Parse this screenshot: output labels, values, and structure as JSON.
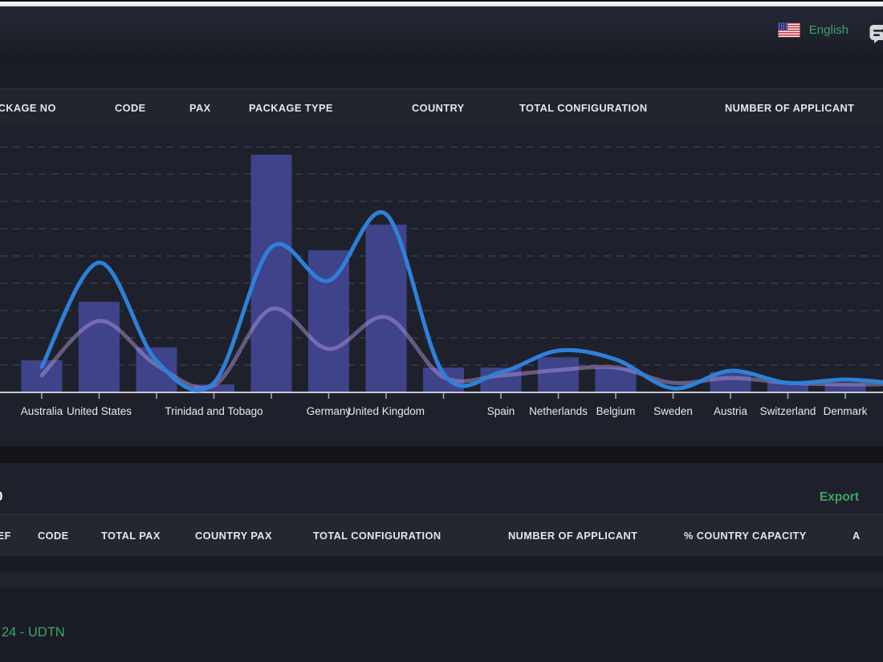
{
  "top_bar": {
    "language_label": "English",
    "flag_icon": "us-flag",
    "panel_icon": "chat-panel"
  },
  "package_table": {
    "columns": [
      "PACKAGE NO",
      "CODE",
      "PAX",
      "PACKAGE TYPE",
      "COUNTRY",
      "TOTAL CONFIGURATION",
      "NUMBER OF APPLICANT"
    ]
  },
  "chart_data": {
    "type": "bar",
    "title": "",
    "xlabel": "",
    "ylabel": "",
    "ylim": [
      0,
      95
    ],
    "grid": "horizontal-dashed",
    "legend": "none",
    "categories": [
      "Australia",
      "United States",
      "",
      "Trinidad and Tobago",
      "",
      "Germany",
      "United Kingdom",
      "",
      "Spain",
      "Netherlands",
      "Belgium",
      "Sweden",
      "Austria",
      "Switzerland",
      "Denmark"
    ],
    "series": [
      {
        "name": "country-bars",
        "type": "bar",
        "color": "#3f4389",
        "values": [
          11.8,
          33.2,
          16.5,
          2.9,
          87.1,
          52.1,
          61.5,
          9.1,
          9.1,
          12.9,
          9.1,
          0,
          7.4,
          3.8,
          3.2
        ]
      },
      {
        "name": "trend-purple",
        "type": "line",
        "color": "#ad94d7",
        "opacity": 0.5,
        "values": [
          6.2,
          26.2,
          10.0,
          2.6,
          30.6,
          15.9,
          27.6,
          5.6,
          6.2,
          8.2,
          9.1,
          3.5,
          5.3,
          3.5,
          2.9
        ],
        "edge_value": 3.1
      },
      {
        "name": "trend-blue",
        "type": "line",
        "color": "#2e80d9",
        "opacity": 1,
        "values": [
          9.4,
          47.6,
          11.5,
          3.5,
          53.2,
          40.9,
          65.3,
          6.8,
          7.4,
          15.3,
          12.1,
          1.5,
          7.9,
          3.5,
          4.7
        ],
        "edge_value": 3.4
      }
    ]
  },
  "country_table": {
    "fragment_left": "0",
    "export_label": "Export",
    "columns": [
      "REF",
      "CODE",
      "TOTAL PAX",
      "COUNTRY PAX",
      "TOTAL CONFIGURATION",
      "NUMBER OF APPLICANT",
      "% COUNTRY CAPACITY",
      "A"
    ]
  },
  "footer": {
    "copyright": "24 - UDTN"
  },
  "colors": {
    "accent_green": "#3fa563",
    "bar": "#3f4389",
    "line_blue": "#2e80d9",
    "line_purple": "#ad94d7",
    "page_bg": "#1a1d26",
    "panel_bg": "#1e212b",
    "header_row_bg": "#22252f"
  }
}
